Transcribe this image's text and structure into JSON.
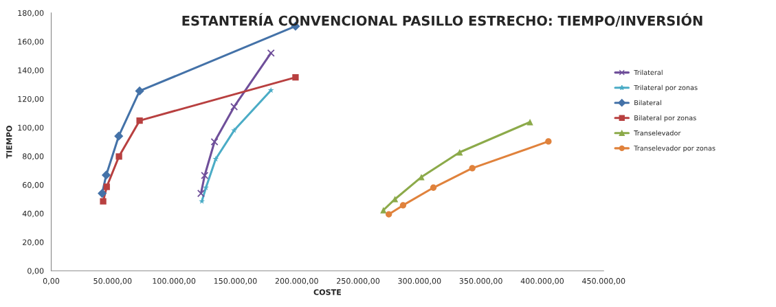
{
  "chart_data": {
    "type": "line",
    "title": "ESTANTERÍA CONVENCIONAL PASILLO ESTRECHO: TIEMPO/INVERSIÓN",
    "xlabel": "COSTE",
    "ylabel": "TIEMPO",
    "xlim": [
      0,
      450000
    ],
    "ylim": [
      0,
      180
    ],
    "xticks": [
      {
        "value": 0,
        "label": "0,00"
      },
      {
        "value": 50000,
        "label": "50.000,00"
      },
      {
        "value": 100000,
        "label": "100.000,00"
      },
      {
        "value": 150000,
        "label": "150.000,00"
      },
      {
        "value": 200000,
        "label": "200.000,00"
      },
      {
        "value": 250000,
        "label": "250.000,00"
      },
      {
        "value": 300000,
        "label": "300.000,00"
      },
      {
        "value": 350000,
        "label": "350.000,00"
      },
      {
        "value": 400000,
        "label": "400.000,00"
      },
      {
        "value": 450000,
        "label": "450.000,00"
      }
    ],
    "yticks": [
      {
        "value": 0,
        "label": "0,00"
      },
      {
        "value": 20,
        "label": "20,00"
      },
      {
        "value": 40,
        "label": "40,00"
      },
      {
        "value": 60,
        "label": "60,00"
      },
      {
        "value": 80,
        "label": "80,00"
      },
      {
        "value": 100,
        "label": "100,00"
      },
      {
        "value": 120,
        "label": "120,00"
      },
      {
        "value": 140,
        "label": "140,00"
      },
      {
        "value": 160,
        "label": "160,00"
      },
      {
        "value": 180,
        "label": "180,00"
      }
    ],
    "grid": false,
    "legend": "right",
    "series": [
      {
        "name": "Trilateral",
        "color": "#6f4f9a",
        "marker": "cross",
        "x": [
          122000,
          125000,
          133000,
          149000,
          179000
        ],
        "values": [
          54,
          66.5,
          90,
          114.5,
          152
        ]
      },
      {
        "name": "Trilateral por zonas",
        "color": "#4bacc6",
        "marker": "star",
        "x": [
          122700,
          126000,
          134000,
          149000,
          179000
        ],
        "values": [
          48.5,
          58,
          78,
          98,
          126
        ]
      },
      {
        "name": "Bilateral",
        "color": "#4472a8",
        "marker": "diamond",
        "x": [
          41500,
          44800,
          55000,
          72000,
          199000
        ],
        "values": [
          54,
          66.8,
          94,
          125.5,
          170.7
        ]
      },
      {
        "name": "Bilateral por zonas",
        "color": "#b84040",
        "marker": "square",
        "x": [
          42300,
          45200,
          55200,
          72000,
          199000
        ],
        "values": [
          48.5,
          58.6,
          79.8,
          104.8,
          135
        ]
      },
      {
        "name": "Transelevador",
        "color": "#8caa4a",
        "marker": "triangle",
        "x": [
          270600,
          280000,
          301500,
          332700,
          390000
        ],
        "values": [
          42.3,
          50,
          65.4,
          82.7,
          103.8
        ]
      },
      {
        "name": "Transelevador por zonas",
        "color": "#e0823c",
        "marker": "circle",
        "x": [
          275000,
          286600,
          311300,
          343000,
          405000
        ],
        "values": [
          39.4,
          45.7,
          58,
          71.6,
          90.3
        ]
      }
    ]
  }
}
